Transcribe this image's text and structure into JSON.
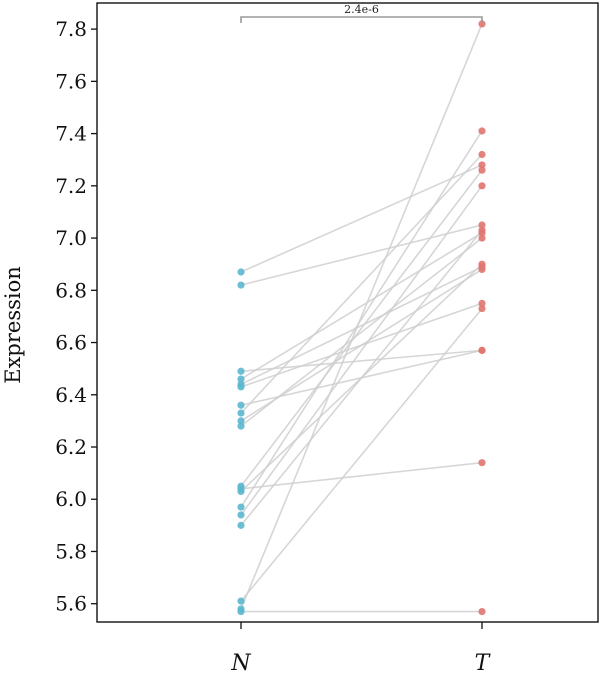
{
  "chart_data": {
    "type": "scatter",
    "subtype": "paired",
    "ylabel": "Expression",
    "categories": [
      "N",
      "T"
    ],
    "ylim": [
      5.53,
      7.9
    ],
    "yticks": [
      5.6,
      5.8,
      6.0,
      6.2,
      6.4,
      6.6,
      6.8,
      7.0,
      7.2,
      7.4,
      7.6,
      7.8
    ],
    "ytick_labels": [
      "5.6",
      "5.8",
      "6.0",
      "6.2",
      "6.4",
      "6.6",
      "6.8",
      "7.0",
      "7.2",
      "7.4",
      "7.6",
      "7.8"
    ],
    "grid": false,
    "annotation": "2.4e-6",
    "colors": {
      "N": "#5bb7cf",
      "T": "#e07570",
      "line": "#cfcfcf"
    },
    "pairs": [
      {
        "N": 6.87,
        "T": 7.28
      },
      {
        "N": 6.82,
        "T": 7.05
      },
      {
        "N": 6.49,
        "T": 6.57
      },
      {
        "N": 6.46,
        "T": 7.02
      },
      {
        "N": 6.44,
        "T": 6.89
      },
      {
        "N": 6.43,
        "T": 6.75
      },
      {
        "N": 6.36,
        "T": 6.57
      },
      {
        "N": 6.33,
        "T": 7.32
      },
      {
        "N": 6.3,
        "T": 6.88
      },
      {
        "N": 6.28,
        "T": 7.0
      },
      {
        "N": 6.05,
        "T": 7.26
      },
      {
        "N": 6.04,
        "T": 6.14
      },
      {
        "N": 6.03,
        "T": 6.9
      },
      {
        "N": 5.97,
        "T": 7.41
      },
      {
        "N": 5.94,
        "T": 7.2
      },
      {
        "N": 5.9,
        "T": 7.03
      },
      {
        "N": 5.61,
        "T": 6.73
      },
      {
        "N": 5.58,
        "T": 7.82
      },
      {
        "N": 5.57,
        "T": 5.57
      }
    ]
  }
}
